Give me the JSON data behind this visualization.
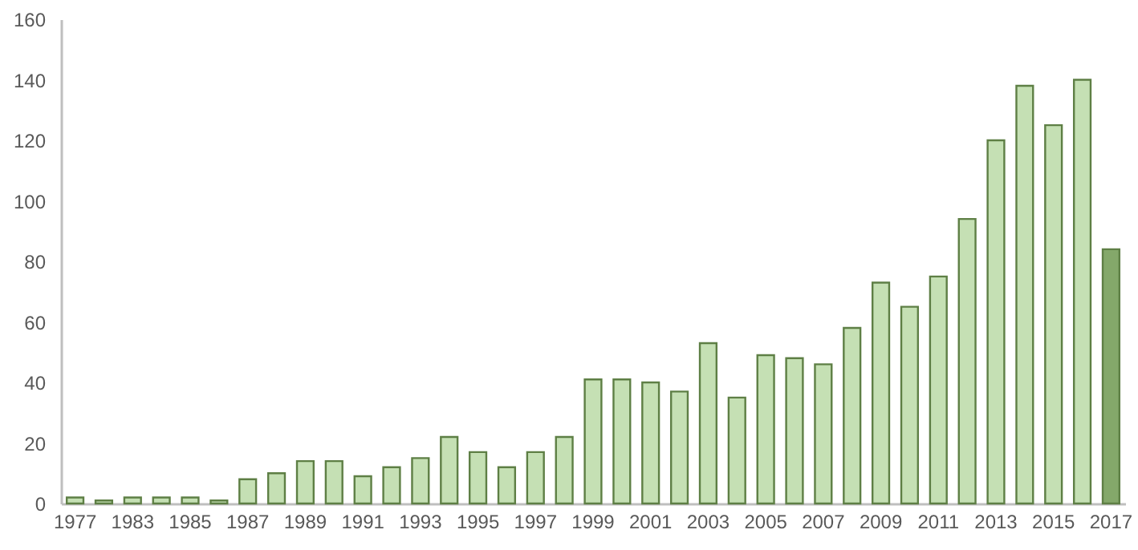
{
  "chart_data": {
    "type": "bar",
    "categories": [
      "1977",
      null,
      "1983",
      null,
      "1985",
      null,
      "1987",
      null,
      "1989",
      null,
      "1991",
      null,
      "1993",
      null,
      "1995",
      null,
      "1997",
      null,
      "1999",
      null,
      "2001",
      null,
      "2003",
      null,
      "2005",
      null,
      "2007",
      null,
      "2009",
      null,
      "2011",
      null,
      "2013",
      null,
      "2015",
      null,
      "2017"
    ],
    "values": [
      2,
      1,
      2,
      2,
      2,
      1,
      8,
      10,
      14,
      14,
      9,
      12,
      15,
      22,
      17,
      12,
      17,
      22,
      41,
      41,
      40,
      37,
      53,
      35,
      49,
      48,
      46,
      58,
      73,
      65,
      75,
      94,
      120,
      138,
      125,
      140,
      84
    ],
    "colors": [
      "#c5e0b4",
      "#c5e0b4",
      "#c5e0b4",
      "#c5e0b4",
      "#c5e0b4",
      "#c5e0b4",
      "#c5e0b4",
      "#c5e0b4",
      "#c5e0b4",
      "#c5e0b4",
      "#c5e0b4",
      "#c5e0b4",
      "#c5e0b4",
      "#c5e0b4",
      "#c5e0b4",
      "#c5e0b4",
      "#c5e0b4",
      "#c5e0b4",
      "#c5e0b4",
      "#c5e0b4",
      "#c5e0b4",
      "#c5e0b4",
      "#c5e0b4",
      "#c5e0b4",
      "#c5e0b4",
      "#c5e0b4",
      "#c5e0b4",
      "#c5e0b4",
      "#c5e0b4",
      "#c5e0b4",
      "#c5e0b4",
      "#c5e0b4",
      "#c5e0b4",
      "#c5e0b4",
      "#c5e0b4",
      "#c5e0b4",
      "#84a86a"
    ],
    "ylim": [
      0,
      160
    ],
    "yticks": [
      0,
      20,
      40,
      60,
      80,
      100,
      120,
      140,
      160
    ]
  }
}
